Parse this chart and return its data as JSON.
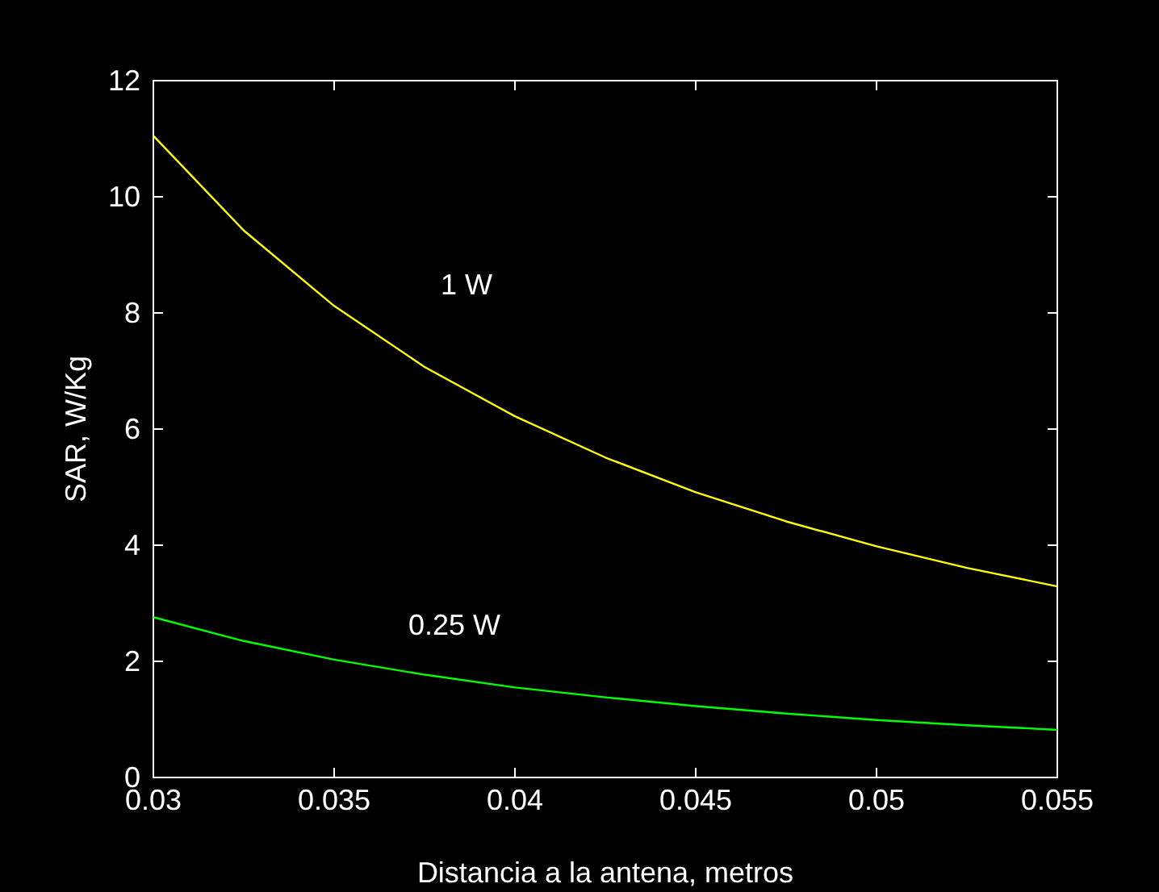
{
  "chart_data": {
    "type": "line",
    "xlabel": "Distancia a la antena, metros",
    "ylabel": "SAR, W/Kg",
    "x": [
      0.03,
      0.0325,
      0.035,
      0.0375,
      0.04,
      0.0425,
      0.045,
      0.0475,
      0.05,
      0.0525,
      0.055
    ],
    "series": [
      {
        "name": "1 W",
        "color": "#ffff00",
        "values": [
          11.05,
          9.42,
          8.12,
          7.07,
          6.22,
          5.51,
          4.91,
          4.41,
          3.98,
          3.61,
          3.29
        ]
      },
      {
        "name": "0.25 W",
        "color": "#00ff00",
        "values": [
          2.76,
          2.35,
          2.03,
          1.77,
          1.55,
          1.38,
          1.23,
          1.1,
          0.99,
          0.9,
          0.82
        ]
      }
    ],
    "xlim": [
      0.03,
      0.055
    ],
    "xticks": [
      0.03,
      0.035,
      0.04,
      0.045,
      0.05,
      0.055
    ],
    "ylim": [
      0,
      12
    ],
    "yticks": [
      0,
      2,
      4,
      6,
      8,
      10,
      12
    ],
    "grid": false,
    "legend": false,
    "marker": "none",
    "line_style": "solid"
  }
}
